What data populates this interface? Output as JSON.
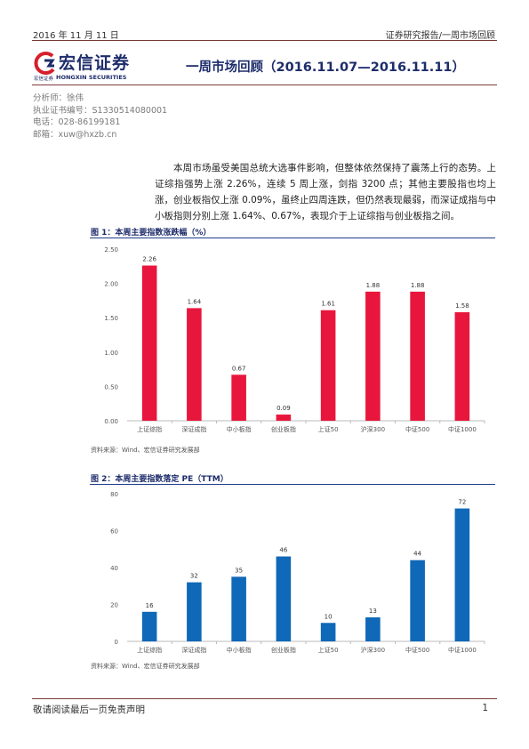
{
  "header": {
    "date": "2016 年 11 月 11 日",
    "report_type": "证券研究报告/一周市场回顾"
  },
  "logo": {
    "cn_name": "宏信证券",
    "en_name": "HONGXIN SECURITIES",
    "tagline": "宏信证券"
  },
  "title": "一周市场回顾（2016.11.07—2016.11.11）",
  "analyst": {
    "name_line": "分析师：徐伟",
    "license_line": "执业证书编号：S1330514080001",
    "phone_line": "电话：028-86199181",
    "email_line": "邮箱：xuw@hxzb.cn"
  },
  "summary": "本周市场虽受美国总统大选事件影响，但整体依然保持了震荡上行的态势。上证综指强势上涨 2.26%，连续 5 周上涨，剑指 3200 点；其他主要股指也均上涨，创业板指仅上涨 0.09%，虽终止四周连跌，但仍然表现最弱，而深证成指与中小板指则分别上涨 1.64%、0.67%，表现介于上证综指与创业板指之间。",
  "figure1": {
    "title": "图 1：本周主要指数涨跌幅（%）",
    "source": "资料来源：Wind、宏信证券研究发展部"
  },
  "figure2": {
    "title": "图 2：本周主要指数落定 PE（TTM）",
    "source": "资料来源：Wind、宏信证券研究发展部"
  },
  "footer": {
    "disclaimer": "敬请阅读最后一页免责声明",
    "page": "1"
  },
  "colors": {
    "bar1": "#e8163c",
    "bar2": "#0f68b8",
    "title": "#1e2d6b",
    "rule": "#7a3a3a"
  },
  "chart_data": [
    {
      "type": "bar",
      "title": "图 1：本周主要指数涨跌幅（%）",
      "categories": [
        "上证综指",
        "深证成指",
        "中小板指",
        "创业板指",
        "上证50",
        "沪深300",
        "中证500",
        "中证1000"
      ],
      "values": [
        2.26,
        1.64,
        0.67,
        0.09,
        1.61,
        1.88,
        1.88,
        1.58
      ],
      "value_labels": [
        "2.26",
        "1.64",
        "0.67",
        "0.09",
        "1.61",
        "1.88",
        "1.88",
        "1.58"
      ],
      "ylim": [
        0,
        2.5
      ],
      "yticks": [
        "0.00",
        "0.50",
        "1.00",
        "1.50",
        "2.00",
        "2.50"
      ],
      "grid": false
    },
    {
      "type": "bar",
      "title": "图 2：本周主要指数落定 PE（TTM）",
      "categories": [
        "上证综指",
        "深证成指",
        "中小板指",
        "创业板指",
        "上证50",
        "沪深300",
        "中证500",
        "中证1000"
      ],
      "values": [
        16,
        32,
        35,
        46,
        10,
        13,
        44,
        72
      ],
      "value_labels": [
        "16",
        "32",
        "35",
        "46",
        "10",
        "13",
        "44",
        "72"
      ],
      "ylim": [
        0,
        80
      ],
      "yticks": [
        "0",
        "20",
        "40",
        "60",
        "80"
      ],
      "grid": false
    }
  ]
}
